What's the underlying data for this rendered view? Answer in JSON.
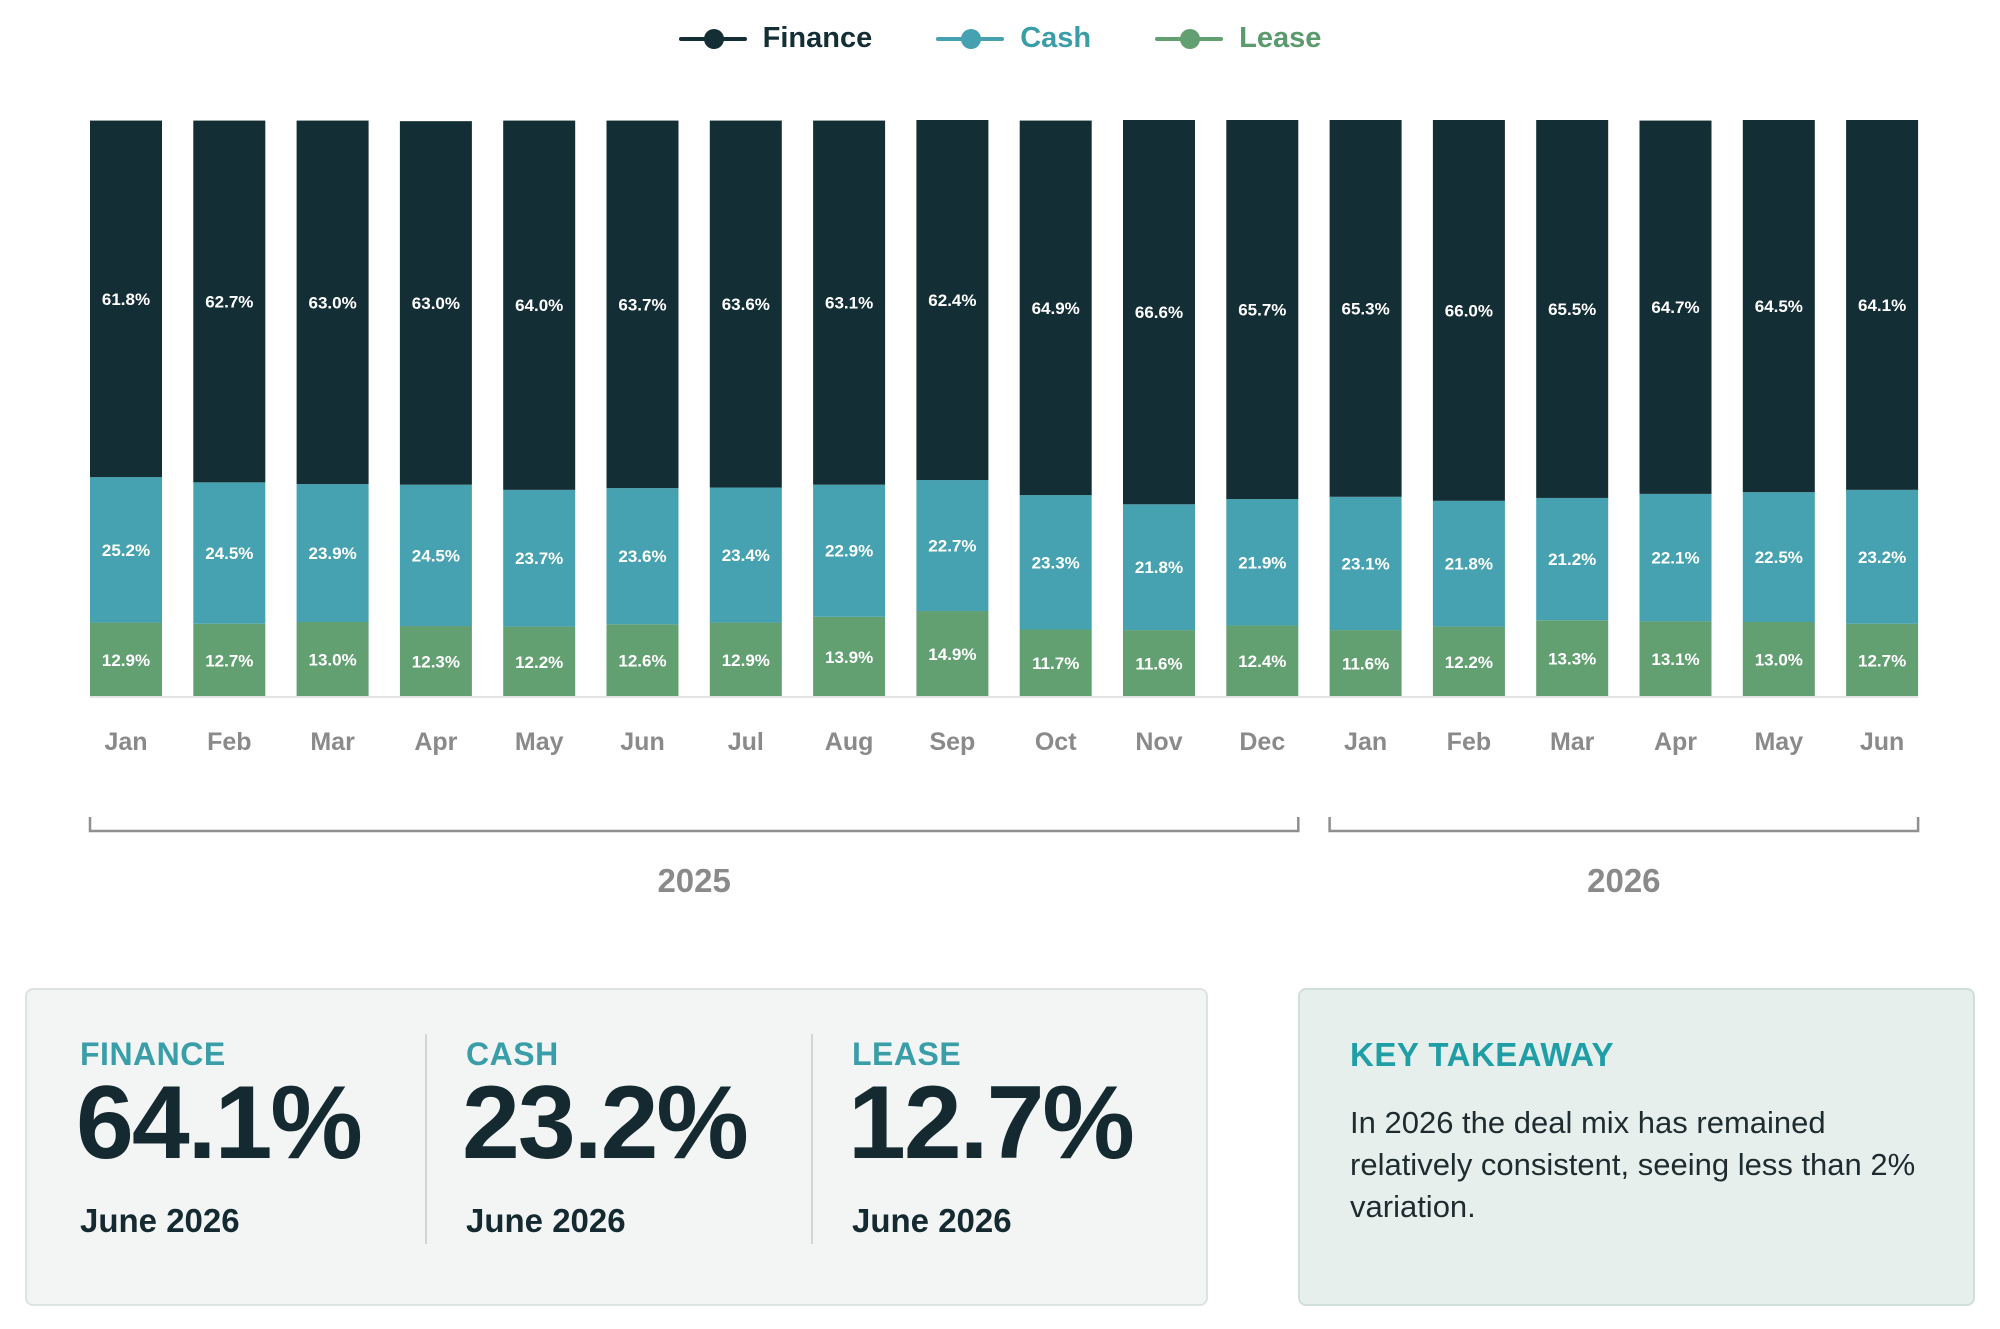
{
  "colors": {
    "finance": "#142e35",
    "cash": "#46a2b0",
    "lease": "#63a071",
    "axis_text": "#8a8a8a",
    "bracket": "#8f8f8f"
  },
  "legend": [
    {
      "label": "Finance",
      "color": "#142e35",
      "text_color": "#142e35"
    },
    {
      "label": "Cash",
      "color": "#46a2b0",
      "text_color": "#3a9ea8"
    },
    {
      "label": "Lease",
      "color": "#63a071",
      "text_color": "#5a9a6c"
    }
  ],
  "chart_data": {
    "type": "bar",
    "stacked": true,
    "categories": [
      "Jan",
      "Feb",
      "Mar",
      "Apr",
      "May",
      "Jun",
      "Jul",
      "Aug",
      "Sep",
      "Oct",
      "Nov",
      "Dec",
      "Jan",
      "Feb",
      "Mar",
      "Apr",
      "May",
      "Jun"
    ],
    "year_groups": [
      {
        "label": "2025",
        "months": 12
      },
      {
        "label": "2026",
        "months": 6
      }
    ],
    "series": [
      {
        "name": "Finance",
        "values": [
          61.8,
          62.7,
          63.0,
          63.0,
          64.0,
          63.7,
          63.6,
          63.1,
          62.4,
          64.9,
          66.6,
          65.7,
          65.3,
          66.0,
          65.5,
          64.7,
          64.5,
          64.1
        ]
      },
      {
        "name": "Cash",
        "values": [
          25.2,
          24.5,
          23.9,
          24.5,
          23.7,
          23.6,
          23.4,
          22.9,
          22.7,
          23.3,
          21.8,
          21.9,
          23.1,
          21.8,
          21.2,
          22.1,
          22.5,
          23.2
        ]
      },
      {
        "name": "Lease",
        "values": [
          12.9,
          12.7,
          13.0,
          12.3,
          12.2,
          12.6,
          12.9,
          13.9,
          14.9,
          11.7,
          11.6,
          12.4,
          11.6,
          12.2,
          13.3,
          13.1,
          13.0,
          12.7
        ]
      }
    ],
    "value_suffix": "%",
    "ylim": [
      0,
      100
    ]
  },
  "stats": [
    {
      "label": "FINANCE",
      "value": "64.1%",
      "date": "June 2026"
    },
    {
      "label": "CASH",
      "value": "23.2%",
      "date": "June 2026"
    },
    {
      "label": "LEASE",
      "value": "12.7%",
      "date": "June 2026"
    }
  ],
  "takeaway": {
    "title": "KEY TAKEAWAY",
    "text": "In 2026 the deal mix has remained relatively consistent, seeing less than 2% variation."
  }
}
